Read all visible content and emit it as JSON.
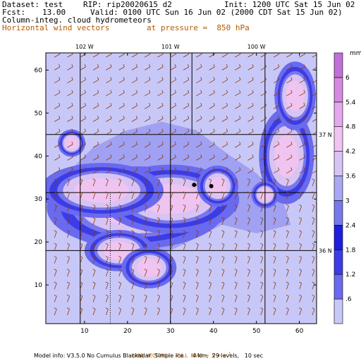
{
  "header": {
    "dataset_label": "Dataset: test",
    "rip_label": "RIP: rip20020615 d2",
    "init_label": "Init: 1200 UTC Sat 15 Jun 02",
    "fcst_label": "Fcst:",
    "fcst_value": "13.00",
    "valid_label": "Valid: 0100 UTC Sun 16 Jun 02 (2000 CDT Sat 15 Jun 02)",
    "field1": "Column-integ. cloud hydrometeors",
    "field2": "Horizontal wind vectors",
    "pressure_label": "at pressure =  850 hPa"
  },
  "footer": {
    "barb_legend": "BARB VECTORS:  FULL BARB = 5 m s",
    "barb_exponent": "-1",
    "model_info": "Model info: V3.5.0 No Cumulus Blackadar  Simple ice     4 km,  29 levels,   10 sec"
  },
  "colors": {
    "level_fills": [
      "#c8c8f8",
      "#9c9cf2",
      "#6a6aee",
      "#3c3ce6",
      "#1e1edc",
      "#7878ec",
      "#a8a8f4",
      "#d8c4f4",
      "#f0c4f0",
      "#e4a8ec",
      "#d48ae0",
      "#c070d8",
      "#b058cc",
      "#a040c0"
    ],
    "barb": "#8b3a0e",
    "frame": "#000000",
    "orange_text": "#b35a00"
  },
  "chart_data": {
    "type": "heatmap",
    "title": "Column-integ. cloud hydrometeors",
    "xlim": [
      1,
      64
    ],
    "ylim": [
      1,
      64
    ],
    "x_ticks": [
      10,
      20,
      30,
      40,
      50,
      60
    ],
    "y_ticks": [
      10,
      20,
      30,
      40,
      50,
      60
    ],
    "longitude_labels": [
      {
        "x": 10,
        "text": "102 W"
      },
      {
        "x": 30,
        "text": "101 W"
      },
      {
        "x": 50,
        "text": "100 W"
      }
    ],
    "latitude_labels": [
      {
        "y": 45,
        "text": "37 N"
      },
      {
        "y": 18,
        "text": "36 N"
      }
    ],
    "colorbar": {
      "unit": "mm",
      "levels": [
        ".6",
        "1.2",
        "1.8",
        "2.4",
        "3",
        "3.6",
        "4.2",
        "4.8",
        "5.4",
        "6"
      ]
    },
    "features": {
      "cloud_blobs": [
        {
          "x": 22,
          "y": 28,
          "rx": 13,
          "ry": 6,
          "level": 3
        },
        {
          "x": 30,
          "y": 30,
          "rx": 10,
          "ry": 5,
          "level": 3
        },
        {
          "x": 14,
          "y": 32,
          "rx": 9,
          "ry": 4,
          "level": 3
        },
        {
          "x": 18,
          "y": 18,
          "rx": 5,
          "ry": 3,
          "level": 3
        },
        {
          "x": 25,
          "y": 14,
          "rx": 4,
          "ry": 3,
          "level": 3
        },
        {
          "x": 41,
          "y": 33,
          "rx": 3,
          "ry": 3,
          "level": 3
        },
        {
          "x": 57,
          "y": 40,
          "rx": 4,
          "ry": 7,
          "level": 3
        },
        {
          "x": 59,
          "y": 54,
          "rx": 3,
          "ry": 5,
          "level": 3
        },
        {
          "x": 7,
          "y": 43,
          "rx": 2,
          "ry": 2,
          "level": 3
        },
        {
          "x": 52,
          "y": 31,
          "rx": 2,
          "ry": 2,
          "level": 3
        }
      ],
      "dots": [
        {
          "x": 35.5,
          "y": 33.3
        },
        {
          "x": 39.5,
          "y": 33.0
        }
      ]
    }
  }
}
